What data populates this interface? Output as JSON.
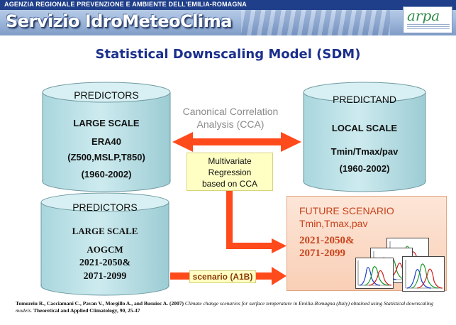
{
  "header": {
    "agency": "AGENZIA REGIONALE PREVENZIONE E AMBIENTE DELL'EMILIA-ROMAGNA",
    "service": "Servizio IdroMeteoClima",
    "logo": "arpa"
  },
  "title": "Statistical Downscaling Model (SDM)",
  "predictors_top": {
    "header": "PREDICTORS",
    "scale": "LARGE SCALE",
    "dataset": "ERA40",
    "variables": "(Z500,MSLP,T850)",
    "period": "(1960-2002)"
  },
  "predictand": {
    "header": "PREDICTAND",
    "scale": "LOCAL SCALE",
    "variables": "Tmin/Tmax/pav",
    "period": "(1960-2002)"
  },
  "predictors_bottom": {
    "header": "PREDICTORS",
    "scale": "LARGE SCALE",
    "dataset": "AOGCM",
    "period1": "2021-2050&",
    "period2": "2071-2099"
  },
  "cca": {
    "line1": "Canonical Correlation",
    "line2": "Analysis (CCA)"
  },
  "mvr": {
    "line1": "Multivariate",
    "line2": "Regression",
    "line3": "based on CCA"
  },
  "scenario_label": "scenario (A1B)",
  "future": {
    "title": "FUTURE SCENARIO",
    "vars": "Tmin,Tmax,pav",
    "period1": "2021-2050&",
    "period2": "2071-2099"
  },
  "citation": {
    "authors": "Tomozeiu R., Cacciamani C., Pavan V., Morgillo A., and Busuioc A. (2007)",
    "title": "Climate change scenarios for surface temperature in Emilia-Romagna (Italy) obtained using Statistical downscaling models.",
    "journal": "Theoretical and Applied Climatology, 90, 25-47"
  },
  "colors": {
    "cylinder_fill": "#bfe3e8",
    "cylinder_stroke": "#6f9aa1",
    "arrow": "#ff4a1c",
    "title": "#1b2f8c"
  }
}
